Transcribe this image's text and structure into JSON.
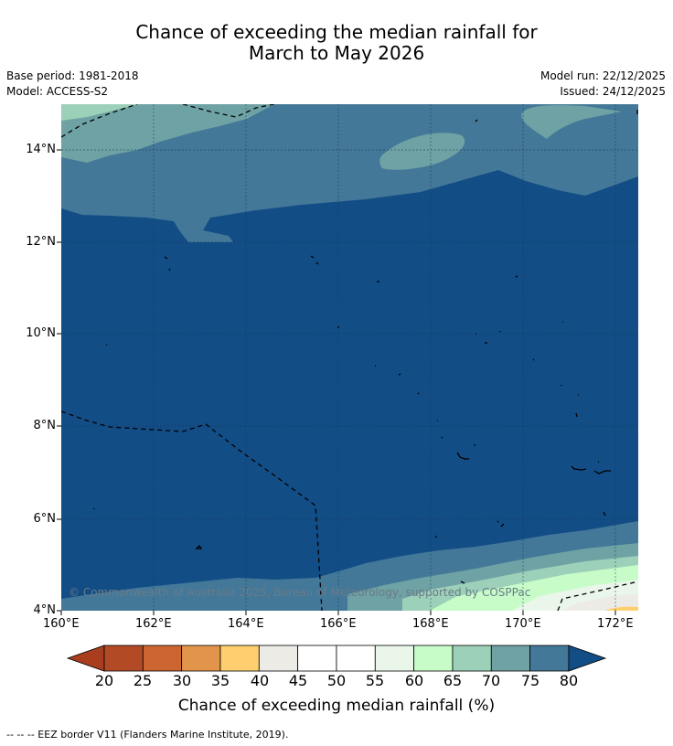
{
  "title_line1": "Chance of exceeding the median rainfall for",
  "title_line2": "March to May 2026",
  "base_period": "Base period: 1981-2018",
  "model": "Model: ACCESS-S2",
  "model_run": "Model run: 22/12/2025",
  "issued": "Issued: 24/12/2025",
  "map": {
    "lat_labels": [
      "14°N",
      "12°N",
      "10°N",
      "8°N",
      "6°N",
      "4°N"
    ],
    "lon_labels": [
      "160°E",
      "162°E",
      "164°E",
      "166°E",
      "168°E",
      "170°E",
      "172°E"
    ],
    "copyright": "© Commonwealth of Australia 2025, Bureau of Meteorology, supported by COSPPac",
    "region_colors": {
      "c80": "#134d86",
      "c75": "#437898",
      "c70": "#6ea2a4",
      "c65": "#9dd0b9",
      "c60": "#c7fcc9",
      "c55": "#eaf6e9",
      "c40": "#ecebe6",
      "c35": "#fdcf6e"
    }
  },
  "colorbar": {
    "labels": [
      "20",
      "25",
      "30",
      "35",
      "40",
      "45",
      "50",
      "55",
      "60",
      "65",
      "70",
      "75",
      "80"
    ],
    "colors": [
      "#a93e1f",
      "#b24a25",
      "#cd6532",
      "#e2944a",
      "#fdcf6e",
      "#ecebe6",
      "#ffffff",
      "#ffffff",
      "#eaf6e9",
      "#c7fcc9",
      "#9dd0b9",
      "#6ea2a4",
      "#437898",
      "#134d86"
    ],
    "title": "Chance of exceeding median rainfall (%)"
  },
  "footnote": "--  --  -- EEZ border V11 (Flanders Marine Institute, 2019)."
}
